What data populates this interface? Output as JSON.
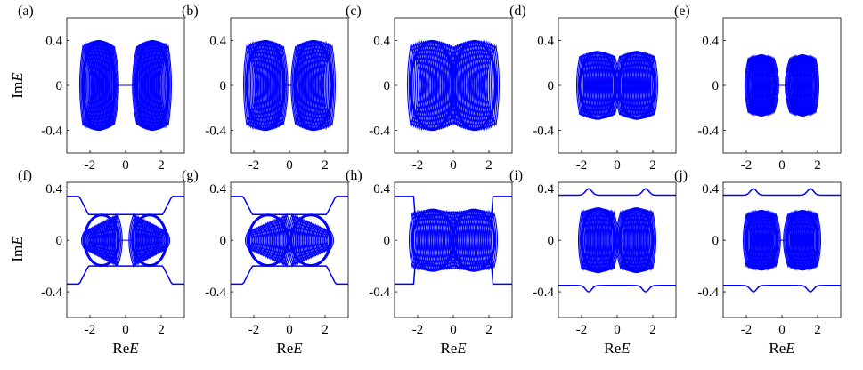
{
  "ylabel_top": "ImE",
  "ylabel_bottom": "ImE",
  "xlabel": "ReE",
  "chart_data": [
    {
      "label": "(a)",
      "type": "scatter",
      "shape": "two-lobes-open",
      "xlim": [
        -3.3,
        3.3
      ],
      "ylim": [
        -0.6,
        0.6
      ],
      "xticks": [
        "-2",
        "0",
        "2"
      ],
      "yticks": [
        "0.4",
        "0",
        "-0.4"
      ],
      "xtick_values": [
        -2,
        0,
        2
      ],
      "ytick_values": [
        0.4,
        0,
        -0.4
      ],
      "lobe_x_extent": [
        0.6,
        2.4
      ],
      "lobe_y_extent": [
        -0.4,
        0.4
      ],
      "series_color": "#0000ff"
    },
    {
      "label": "(b)",
      "type": "scatter",
      "shape": "two-lobes-open",
      "xlim": [
        -3.3,
        3.3
      ],
      "ylim": [
        -0.6,
        0.6
      ],
      "xticks": [
        "-2",
        "0",
        "2"
      ],
      "yticks": [
        "0.4",
        "0",
        "-0.4"
      ],
      "xtick_values": [
        -2,
        0,
        2
      ],
      "ytick_values": [
        0.4,
        0,
        -0.4
      ],
      "lobe_x_extent": [
        0.3,
        2.4
      ],
      "lobe_y_extent": [
        -0.4,
        0.4
      ],
      "series_color": "#0000ff"
    },
    {
      "label": "(c)",
      "type": "scatter",
      "shape": "merged",
      "xlim": [
        -3.3,
        3.3
      ],
      "ylim": [
        -0.6,
        0.6
      ],
      "xticks": [
        "-2",
        "0",
        "2"
      ],
      "yticks": [
        "0.4",
        "0",
        "-0.4"
      ],
      "xtick_values": [
        -2,
        0,
        2
      ],
      "ytick_values": [
        0.4,
        0,
        -0.4
      ],
      "lobe_x_extent": [
        0.0,
        2.4
      ],
      "lobe_y_extent": [
        -0.4,
        0.4
      ],
      "series_color": "#0000ff"
    },
    {
      "label": "(d)",
      "type": "scatter",
      "shape": "two-lobes-filled",
      "xlim": [
        -3.3,
        3.3
      ],
      "ylim": [
        -0.6,
        0.6
      ],
      "xticks": [
        "-2",
        "0",
        "2"
      ],
      "yticks": [
        "0.4",
        "0",
        "-0.4"
      ],
      "xtick_values": [
        -2,
        0,
        2
      ],
      "ytick_values": [
        0.4,
        0,
        -0.4
      ],
      "lobe_x_extent": [
        0.1,
        2.1
      ],
      "lobe_y_extent": [
        -0.3,
        0.3
      ],
      "series_color": "#0000ff"
    },
    {
      "label": "(e)",
      "type": "scatter",
      "shape": "two-lobes-filled",
      "xlim": [
        -3.3,
        3.3
      ],
      "ylim": [
        -0.6,
        0.6
      ],
      "xticks": [
        "-2",
        "0",
        "2"
      ],
      "yticks": [
        "0.4",
        "0",
        "-0.4"
      ],
      "xtick_values": [
        -2,
        0,
        2
      ],
      "ytick_values": [
        0.4,
        0,
        -0.4
      ],
      "lobe_x_extent": [
        0.4,
        1.9
      ],
      "lobe_y_extent": [
        -0.27,
        0.27
      ],
      "series_color": "#0000ff"
    },
    {
      "label": "(f)",
      "type": "scatter",
      "shape": "bowtie-with-bands",
      "xlim": [
        -3.3,
        3.3
      ],
      "ylim": [
        -0.6,
        0.45
      ],
      "xticks": [
        "-2",
        "0",
        "2"
      ],
      "yticks": [
        "0.4",
        "0",
        "-0.4"
      ],
      "xtick_values": [
        -2,
        0,
        2
      ],
      "ytick_values": [
        0.4,
        0,
        -0.4
      ],
      "lobe_x_extent": [
        0.4,
        2.3
      ],
      "lobe_y_extent": [
        -0.2,
        0.2
      ],
      "band_level": 0.34,
      "series_color": "#0000ff"
    },
    {
      "label": "(g)",
      "type": "scatter",
      "shape": "bowtie-with-bands",
      "xlim": [
        -3.3,
        3.3
      ],
      "ylim": [
        -0.6,
        0.45
      ],
      "xticks": [
        "-2",
        "0",
        "2"
      ],
      "yticks": [
        "0.4",
        "0",
        "-0.4"
      ],
      "xtick_values": [
        -2,
        0,
        2
      ],
      "ytick_values": [
        0.4,
        0,
        -0.4
      ],
      "lobe_x_extent": [
        0.1,
        2.3
      ],
      "lobe_y_extent": [
        -0.2,
        0.2
      ],
      "band_level": 0.34,
      "series_color": "#0000ff"
    },
    {
      "label": "(h)",
      "type": "scatter",
      "shape": "merged-with-bands",
      "xlim": [
        -3.3,
        3.3
      ],
      "ylim": [
        -0.6,
        0.45
      ],
      "xticks": [
        "-2",
        "0",
        "2"
      ],
      "yticks": [
        "0.4",
        "0",
        "-0.4"
      ],
      "xtick_values": [
        -2,
        0,
        2
      ],
      "ytick_values": [
        0.4,
        0,
        -0.4
      ],
      "lobe_x_extent": [
        0.0,
        2.3
      ],
      "lobe_y_extent": [
        -0.24,
        0.24
      ],
      "band_level": 0.34,
      "series_color": "#0000ff"
    },
    {
      "label": "(i)",
      "type": "scatter",
      "shape": "two-lobes-with-bands",
      "xlim": [
        -3.3,
        3.3
      ],
      "ylim": [
        -0.6,
        0.45
      ],
      "xticks": [
        "-2",
        "0",
        "2"
      ],
      "yticks": [
        "0.4",
        "0",
        "-0.4"
      ],
      "xtick_values": [
        -2,
        0,
        2
      ],
      "ytick_values": [
        0.4,
        0,
        -0.4
      ],
      "lobe_x_extent": [
        0.15,
        2.0
      ],
      "lobe_y_extent": [
        -0.25,
        0.25
      ],
      "band_level": 0.35,
      "series_color": "#0000ff"
    },
    {
      "label": "(j)",
      "type": "scatter",
      "shape": "two-lobes-with-bands",
      "xlim": [
        -3.3,
        3.3
      ],
      "ylim": [
        -0.6,
        0.45
      ],
      "xticks": [
        "-2",
        "0",
        "2"
      ],
      "yticks": [
        "0.4",
        "0",
        "-0.4"
      ],
      "xtick_values": [
        -2,
        0,
        2
      ],
      "ytick_values": [
        0.4,
        0,
        -0.4
      ],
      "lobe_x_extent": [
        0.3,
        2.0
      ],
      "lobe_y_extent": [
        -0.23,
        0.23
      ],
      "band_level": 0.35,
      "series_color": "#0000ff"
    }
  ]
}
